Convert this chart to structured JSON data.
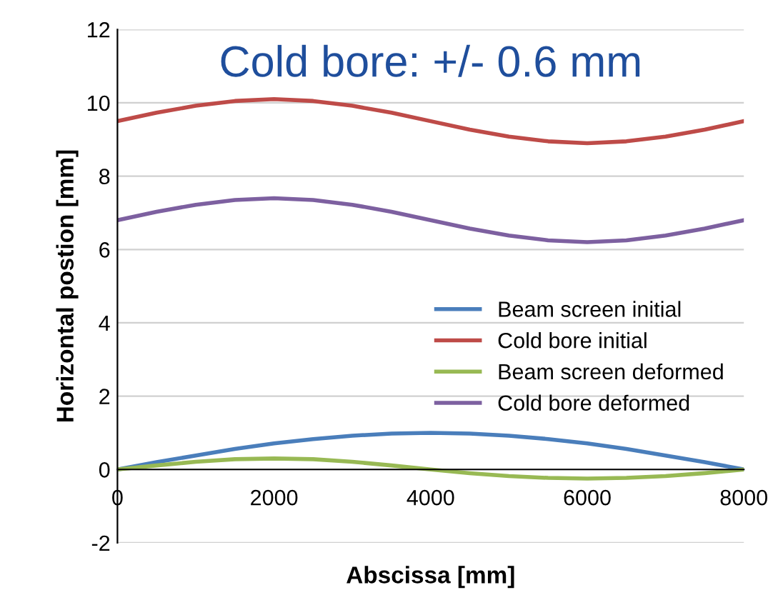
{
  "chart_data": {
    "type": "line",
    "xlabel": "Abscissa [mm]",
    "ylabel": "Horizontal postion [mm]",
    "annotations": [
      "Cold bore: +/- 0.6 mm"
    ],
    "x": [
      0,
      500,
      1000,
      1500,
      2000,
      2500,
      3000,
      3500,
      4000,
      4500,
      5000,
      5500,
      6000,
      6500,
      7000,
      7500,
      8000
    ],
    "series": [
      {
        "name": "Beam screen initial",
        "color": "#4a7ebb",
        "values": [
          0,
          0.2,
          0.38,
          0.56,
          0.71,
          0.83,
          0.92,
          0.98,
          1.0,
          0.98,
          0.92,
          0.83,
          0.71,
          0.56,
          0.38,
          0.2,
          0
        ]
      },
      {
        "name": "Cold bore initial",
        "color": "#be4b48",
        "values": [
          9.5,
          9.73,
          9.92,
          10.05,
          10.1,
          10.05,
          9.92,
          9.73,
          9.5,
          9.27,
          9.08,
          8.95,
          8.9,
          8.95,
          9.08,
          9.27,
          9.5
        ]
      },
      {
        "name": "Beam screen deformed",
        "color": "#98b954",
        "values": [
          0,
          0.11,
          0.21,
          0.28,
          0.3,
          0.28,
          0.21,
          0.11,
          0,
          -0.1,
          -0.18,
          -0.23,
          -0.25,
          -0.23,
          -0.18,
          -0.1,
          0
        ]
      },
      {
        "name": "Cold bore deformed",
        "color": "#7d60a0",
        "values": [
          6.8,
          7.03,
          7.22,
          7.35,
          7.4,
          7.35,
          7.22,
          7.03,
          6.8,
          6.57,
          6.38,
          6.25,
          6.2,
          6.25,
          6.38,
          6.57,
          6.8
        ]
      }
    ],
    "xlim": [
      0,
      8000
    ],
    "xticks": [
      0,
      2000,
      4000,
      6000,
      8000
    ],
    "ylim": [
      -2,
      12
    ],
    "yticks": [
      -2,
      0,
      2,
      4,
      6,
      8,
      10,
      12
    ],
    "grid": "y",
    "legend": "center right",
    "marker": "none",
    "line_style": "solid"
  }
}
